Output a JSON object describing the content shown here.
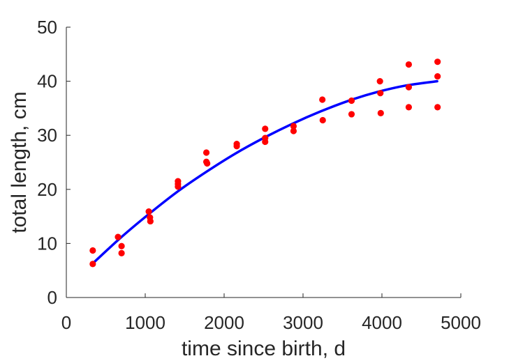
{
  "chart_data": {
    "type": "scatter",
    "title": "",
    "xlabel": "time since birth, d",
    "ylabel": "total length, cm",
    "xlim": [
      0,
      5000
    ],
    "ylim": [
      0,
      50
    ],
    "xticks": [
      0,
      1000,
      2000,
      3000,
      4000,
      5000
    ],
    "yticks": [
      0,
      10,
      20,
      30,
      40,
      50
    ],
    "xtick_labels": [
      "0",
      "1000",
      "2000",
      "3000",
      "4000",
      "5000"
    ],
    "ytick_labels": [
      "0",
      "10",
      "20",
      "30",
      "40",
      "50"
    ],
    "grid": false,
    "legend": "none",
    "series": [
      {
        "type": "scatter",
        "color": "#ff0000",
        "marker": "filled-circle",
        "points": [
          [
            335,
            8.7
          ],
          [
            335,
            6.2
          ],
          [
            655,
            11.2
          ],
          [
            700,
            9.5
          ],
          [
            700,
            8.2
          ],
          [
            1045,
            15.9
          ],
          [
            1060,
            14.8
          ],
          [
            1065,
            14.1
          ],
          [
            1415,
            21.5
          ],
          [
            1415,
            21.0
          ],
          [
            1415,
            20.5
          ],
          [
            1775,
            26.8
          ],
          [
            1775,
            25.1
          ],
          [
            1785,
            24.8
          ],
          [
            2160,
            28.4
          ],
          [
            2160,
            28.0
          ],
          [
            2520,
            31.2
          ],
          [
            2520,
            29.5
          ],
          [
            2520,
            28.8
          ],
          [
            2880,
            31.7
          ],
          [
            2880,
            30.8
          ],
          [
            3245,
            36.6
          ],
          [
            3250,
            32.8
          ],
          [
            3615,
            36.4
          ],
          [
            3615,
            33.9
          ],
          [
            3975,
            40.0
          ],
          [
            3980,
            37.8
          ],
          [
            3985,
            34.1
          ],
          [
            4340,
            43.1
          ],
          [
            4340,
            38.9
          ],
          [
            4340,
            35.2
          ],
          [
            4705,
            43.6
          ],
          [
            4705,
            40.9
          ],
          [
            4705,
            35.2
          ]
        ]
      },
      {
        "type": "line",
        "color": "#0000ff",
        "points": [
          [
            335,
            6.3
          ],
          [
            700,
            11.2
          ],
          [
            1060,
            15.6
          ],
          [
            1420,
            19.7
          ],
          [
            1780,
            23.3
          ],
          [
            2140,
            26.6
          ],
          [
            2500,
            29.5
          ],
          [
            2860,
            32.1
          ],
          [
            3220,
            34.4
          ],
          [
            3580,
            36.4
          ],
          [
            3940,
            38.0
          ],
          [
            4300,
            39.2
          ],
          [
            4700,
            40.0
          ]
        ]
      }
    ]
  }
}
